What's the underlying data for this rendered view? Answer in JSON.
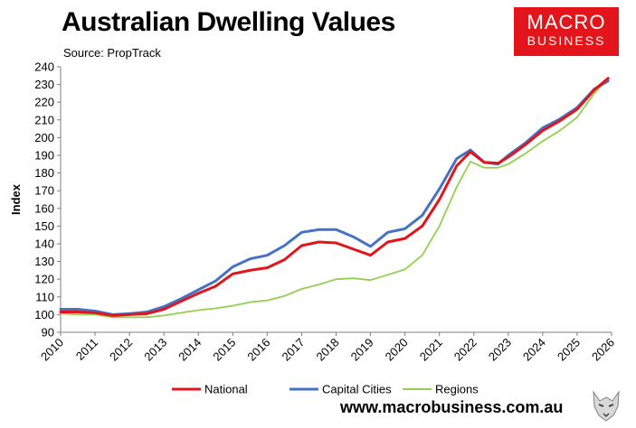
{
  "header": {
    "title": "Australian Dwelling Values",
    "subtitle": "Source: PropTrack"
  },
  "logo": {
    "line1": "MACRO",
    "line2": "BUSINESS",
    "color": "#e3151b"
  },
  "footer": {
    "website": "www.macrobusiness.com.au"
  },
  "chart_data": {
    "type": "line",
    "title": "Australian Dwelling Values",
    "ylabel": "Index",
    "xlabel": "",
    "xlim": [
      2010,
      2026
    ],
    "ylim": [
      90,
      240
    ],
    "y_ticks": [
      90,
      100,
      110,
      120,
      130,
      140,
      150,
      160,
      170,
      180,
      190,
      200,
      210,
      220,
      230,
      240
    ],
    "x_ticks": [
      2010,
      2011,
      2012,
      2013,
      2014,
      2015,
      2016,
      2017,
      2018,
      2019,
      2020,
      2021,
      2022,
      2023,
      2024,
      2025,
      2026
    ],
    "grid": false,
    "legend": "bottom",
    "series": [
      {
        "name": "National",
        "color": "#e3151b",
        "points": [
          [
            2010.0,
            101.5
          ],
          [
            2010.5,
            101.5
          ],
          [
            2011.0,
            101.0
          ],
          [
            2011.5,
            99.5
          ],
          [
            2012.0,
            100.0
          ],
          [
            2012.5,
            100.5
          ],
          [
            2013.0,
            103.0
          ],
          [
            2013.5,
            107.5
          ],
          [
            2014.0,
            112.0
          ],
          [
            2014.5,
            116.0
          ],
          [
            2015.0,
            123.0
          ],
          [
            2015.5,
            125.0
          ],
          [
            2016.0,
            126.5
          ],
          [
            2016.5,
            131.0
          ],
          [
            2017.0,
            139.0
          ],
          [
            2017.5,
            141.0
          ],
          [
            2018.0,
            140.5
          ],
          [
            2018.5,
            137.0
          ],
          [
            2019.0,
            133.5
          ],
          [
            2019.5,
            141.0
          ],
          [
            2020.0,
            143.0
          ],
          [
            2020.5,
            150.0
          ],
          [
            2021.0,
            165.0
          ],
          [
            2021.5,
            184.0
          ],
          [
            2021.9,
            192.0
          ],
          [
            2022.3,
            186.0
          ],
          [
            2022.7,
            185.5
          ],
          [
            2023.0,
            189.0
          ],
          [
            2023.5,
            196.0
          ],
          [
            2024.0,
            204.0
          ],
          [
            2024.5,
            209.5
          ],
          [
            2025.0,
            216.0
          ],
          [
            2025.5,
            227.0
          ],
          [
            2025.9,
            233.5
          ]
        ]
      },
      {
        "name": "Capital Cities",
        "color": "#4472c4",
        "points": [
          [
            2010.0,
            103.0
          ],
          [
            2010.5,
            103.0
          ],
          [
            2011.0,
            102.0
          ],
          [
            2011.5,
            100.0
          ],
          [
            2012.0,
            100.5
          ],
          [
            2012.5,
            101.5
          ],
          [
            2013.0,
            104.5
          ],
          [
            2013.5,
            109.0
          ],
          [
            2014.0,
            114.0
          ],
          [
            2014.5,
            119.0
          ],
          [
            2015.0,
            127.0
          ],
          [
            2015.5,
            131.5
          ],
          [
            2016.0,
            133.5
          ],
          [
            2016.5,
            139.0
          ],
          [
            2017.0,
            146.5
          ],
          [
            2017.5,
            148.0
          ],
          [
            2018.0,
            148.0
          ],
          [
            2018.5,
            144.0
          ],
          [
            2019.0,
            138.5
          ],
          [
            2019.5,
            146.5
          ],
          [
            2020.0,
            148.5
          ],
          [
            2020.5,
            156.0
          ],
          [
            2021.0,
            171.0
          ],
          [
            2021.5,
            188.0
          ],
          [
            2021.9,
            193.0
          ],
          [
            2022.3,
            186.0
          ],
          [
            2022.7,
            185.0
          ],
          [
            2023.0,
            190.0
          ],
          [
            2023.5,
            197.0
          ],
          [
            2024.0,
            205.5
          ],
          [
            2024.5,
            210.5
          ],
          [
            2025.0,
            217.0
          ],
          [
            2025.5,
            227.5
          ],
          [
            2025.9,
            232.0
          ]
        ]
      },
      {
        "name": "Regions",
        "color": "#92d050",
        "points": [
          [
            2010.0,
            100.5
          ],
          [
            2010.5,
            100.0
          ],
          [
            2011.0,
            100.0
          ],
          [
            2011.5,
            98.5
          ],
          [
            2012.0,
            98.5
          ],
          [
            2012.5,
            98.5
          ],
          [
            2013.0,
            99.5
          ],
          [
            2013.5,
            101.0
          ],
          [
            2014.0,
            102.5
          ],
          [
            2014.5,
            103.5
          ],
          [
            2015.0,
            105.0
          ],
          [
            2015.5,
            107.0
          ],
          [
            2016.0,
            108.0
          ],
          [
            2016.5,
            110.5
          ],
          [
            2017.0,
            114.5
          ],
          [
            2017.5,
            117.0
          ],
          [
            2018.0,
            120.0
          ],
          [
            2018.5,
            120.5
          ],
          [
            2019.0,
            119.5
          ],
          [
            2019.5,
            122.5
          ],
          [
            2020.0,
            125.5
          ],
          [
            2020.5,
            133.5
          ],
          [
            2021.0,
            150.0
          ],
          [
            2021.5,
            172.0
          ],
          [
            2021.9,
            186.5
          ],
          [
            2022.3,
            183.0
          ],
          [
            2022.7,
            183.0
          ],
          [
            2023.0,
            185.0
          ],
          [
            2023.5,
            191.0
          ],
          [
            2024.0,
            198.0
          ],
          [
            2024.5,
            204.0
          ],
          [
            2025.0,
            211.5
          ],
          [
            2025.5,
            225.0
          ],
          [
            2025.9,
            233.5
          ]
        ]
      }
    ]
  }
}
